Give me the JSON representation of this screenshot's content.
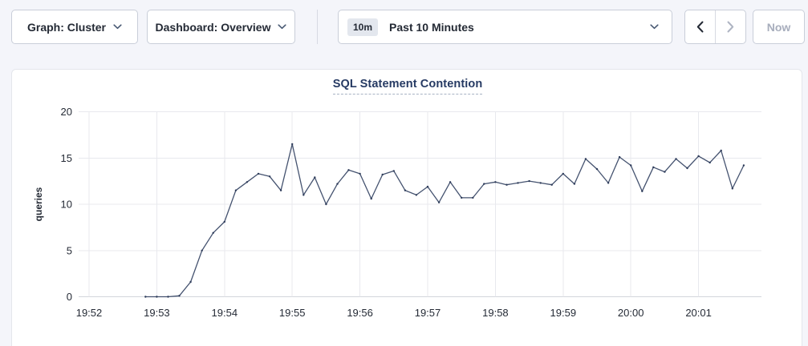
{
  "toolbar": {
    "graph_dropdown": {
      "label": "Graph: Cluster",
      "icon": "chevron-down"
    },
    "dashboard_dropdown": {
      "label": "Dashboard: Overview",
      "icon": "chevron-down"
    },
    "time_range": {
      "badge": "10m",
      "label": "Past 10 Minutes",
      "icon": "chevron-down"
    },
    "prev_button": {
      "icon": "chevron-left",
      "enabled": true
    },
    "next_button": {
      "icon": "chevron-right",
      "enabled": false
    },
    "now_button": {
      "label": "Now",
      "enabled": false
    }
  },
  "colors": {
    "page_bg": "#f4f5fa",
    "text": "#242a35",
    "disabled": "#aeb4c2",
    "grid": "#e8e9ee",
    "baseline": "#d2d5db",
    "title": "#263a63"
  },
  "chart_data": {
    "type": "line",
    "title": "SQL Statement Contention",
    "xlabel": "",
    "ylabel": "queries",
    "ylim": [
      0,
      20
    ],
    "y_ticks": [
      0,
      5,
      10,
      15,
      20
    ],
    "x_ticks": [
      "19:52",
      "19:53",
      "19:54",
      "19:55",
      "19:56",
      "19:57",
      "19:58",
      "19:59",
      "20:00",
      "20:01"
    ],
    "grid": true,
    "legend_position": "none",
    "line_color": "#44526f",
    "point_color": "#2e3c5a",
    "series": [
      {
        "name": "SQL Statement Contention",
        "start_time": "19:52:50",
        "interval_seconds": 10,
        "values": [
          0,
          0,
          0,
          0.1,
          1.6,
          5,
          6.9,
          8.1,
          11.5,
          12.4,
          13.3,
          13,
          11.5,
          16.5,
          11,
          12.9,
          10,
          12.2,
          13.7,
          13.3,
          10.6,
          13.2,
          13.6,
          11.5,
          11,
          11.9,
          10.2,
          12.4,
          10.7,
          10.7,
          12.2,
          12.4,
          12.1,
          12.3,
          12.5,
          12.3,
          12.1,
          13.3,
          12.2,
          14.9,
          13.8,
          12.3,
          15.1,
          14.2,
          11.4,
          14,
          13.5,
          14.9,
          13.9,
          15.2,
          14.5,
          15.8,
          11.7,
          14.2
        ]
      }
    ]
  }
}
